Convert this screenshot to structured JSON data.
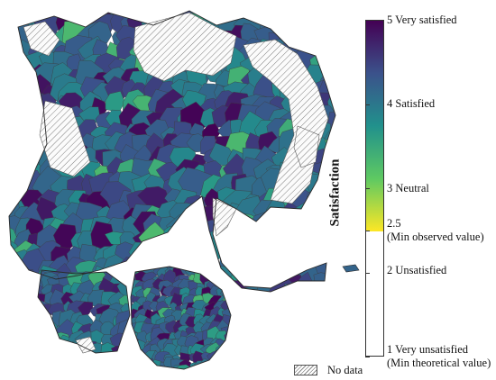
{
  "legend": {
    "title": "Satisfaction",
    "no_data_label": "No data",
    "labels": [
      {
        "value": 5,
        "text": "5  Very satisfied"
      },
      {
        "value": 4,
        "text": "4  Satisfied"
      },
      {
        "value": 3,
        "text": "3  Neutral"
      },
      {
        "value": 2.5,
        "text": "2.5"
      },
      {
        "value": 2.5,
        "text": "(Min observed value)"
      },
      {
        "value": 2,
        "text": "2  Unsatisfied"
      },
      {
        "value": 1,
        "text": "1  Very unsatisfied"
      },
      {
        "value": 1,
        "text": "(Min theoretical value)"
      }
    ],
    "scale_min": 1,
    "scale_max": 5,
    "observed_min": 2.5,
    "colormap": [
      "#fde725",
      "#5ec962",
      "#21918c",
      "#3b528b",
      "#440154"
    ]
  }
}
